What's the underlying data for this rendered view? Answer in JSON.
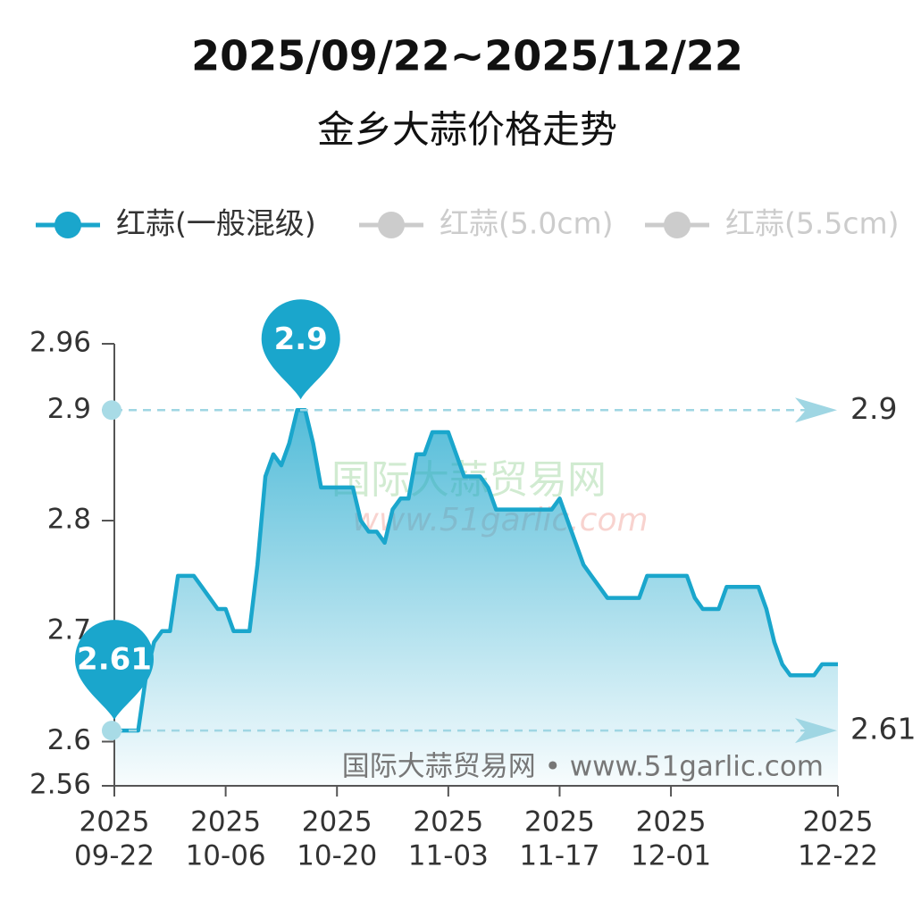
{
  "chart_data": {
    "type": "line",
    "title": "2025/09/22~2025/12/22",
    "subtitle": "金乡大蒜价格走势",
    "x": [
      "2025-09-22",
      "2025-09-23",
      "2025-09-24",
      "2025-09-25",
      "2025-09-26",
      "2025-09-27",
      "2025-09-28",
      "2025-09-29",
      "2025-09-30",
      "2025-10-01",
      "2025-10-02",
      "2025-10-03",
      "2025-10-04",
      "2025-10-05",
      "2025-10-06",
      "2025-10-07",
      "2025-10-08",
      "2025-10-09",
      "2025-10-10",
      "2025-10-11",
      "2025-10-12",
      "2025-10-13",
      "2025-10-14",
      "2025-10-15",
      "2025-10-16",
      "2025-10-17",
      "2025-10-18",
      "2025-10-19",
      "2025-10-20",
      "2025-10-21",
      "2025-10-22",
      "2025-10-23",
      "2025-10-24",
      "2025-10-25",
      "2025-10-26",
      "2025-10-27",
      "2025-10-28",
      "2025-10-29",
      "2025-10-30",
      "2025-10-31",
      "2025-11-01",
      "2025-11-02",
      "2025-11-03",
      "2025-11-04",
      "2025-11-05",
      "2025-11-06",
      "2025-11-07",
      "2025-11-08",
      "2025-11-09",
      "2025-11-10",
      "2025-11-11",
      "2025-11-12",
      "2025-11-13",
      "2025-11-14",
      "2025-11-15",
      "2025-11-16",
      "2025-11-17",
      "2025-11-18",
      "2025-11-19",
      "2025-11-20",
      "2025-11-21",
      "2025-11-22",
      "2025-11-23",
      "2025-11-24",
      "2025-11-25",
      "2025-11-26",
      "2025-11-27",
      "2025-11-28",
      "2025-11-29",
      "2025-11-30",
      "2025-12-01",
      "2025-12-02",
      "2025-12-03",
      "2025-12-04",
      "2025-12-05",
      "2025-12-06",
      "2025-12-07",
      "2025-12-08",
      "2025-12-09",
      "2025-12-10",
      "2025-12-11",
      "2025-12-12",
      "2025-12-13",
      "2025-12-14",
      "2025-12-15",
      "2025-12-16",
      "2025-12-17",
      "2025-12-18",
      "2025-12-19",
      "2025-12-20",
      "2025-12-21",
      "2025-12-22"
    ],
    "series": [
      {
        "name": "红蒜(一般混级)",
        "color": "#1aa6cc",
        "values": [
          2.61,
          2.61,
          2.61,
          2.61,
          2.66,
          2.69,
          2.7,
          2.7,
          2.75,
          2.75,
          2.75,
          2.74,
          2.73,
          2.72,
          2.72,
          2.7,
          2.7,
          2.7,
          2.76,
          2.84,
          2.86,
          2.85,
          2.87,
          2.9,
          2.9,
          2.87,
          2.83,
          2.83,
          2.83,
          2.83,
          2.83,
          2.8,
          2.79,
          2.79,
          2.78,
          2.81,
          2.82,
          2.82,
          2.86,
          2.86,
          2.88,
          2.88,
          2.88,
          2.86,
          2.84,
          2.84,
          2.84,
          2.83,
          2.81,
          2.81,
          2.81,
          2.81,
          2.81,
          2.81,
          2.81,
          2.81,
          2.82,
          2.8,
          2.78,
          2.76,
          2.75,
          2.74,
          2.73,
          2.73,
          2.73,
          2.73,
          2.73,
          2.75,
          2.75,
          2.75,
          2.75,
          2.75,
          2.75,
          2.73,
          2.72,
          2.72,
          2.72,
          2.74,
          2.74,
          2.74,
          2.74,
          2.74,
          2.72,
          2.69,
          2.67,
          2.66,
          2.66,
          2.66,
          2.66,
          2.67,
          2.67,
          2.67
        ]
      }
    ],
    "inactive_series": [
      {
        "name": "红蒜(5.0cm)",
        "color": "#cccccc"
      },
      {
        "name": "红蒜(5.5cm)",
        "color": "#cccccc"
      }
    ],
    "xlim": [
      "2025-09-22",
      "2025-12-22"
    ],
    "xticks": [
      {
        "value": "2025-09-22",
        "label": [
          "2025",
          "09-22"
        ]
      },
      {
        "value": "2025-10-06",
        "label": [
          "2025",
          "10-06"
        ]
      },
      {
        "value": "2025-10-20",
        "label": [
          "2025",
          "10-20"
        ]
      },
      {
        "value": "2025-11-03",
        "label": [
          "2025",
          "11-03"
        ]
      },
      {
        "value": "2025-11-17",
        "label": [
          "2025",
          "11-17"
        ]
      },
      {
        "value": "2025-12-01",
        "label": [
          "2025",
          "12-01"
        ]
      },
      {
        "value": "2025-12-22",
        "label": [
          "2025",
          "12-22"
        ]
      }
    ],
    "ylim": [
      2.56,
      2.96
    ],
    "yticks": [
      2.56,
      2.6,
      2.7,
      2.8,
      2.9,
      2.96
    ],
    "reference_lines": [
      2.9,
      2.61
    ],
    "watermark": [
      "国际大蒜贸易网",
      "www.51garlic.com"
    ],
    "source": "国际大蒜贸易网 • www.51garlic.com"
  }
}
